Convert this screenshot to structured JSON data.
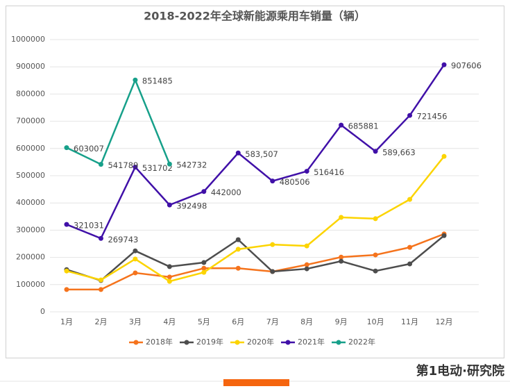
{
  "chart_data": {
    "type": "line",
    "title": "2018-2022年全球新能源乘用车销量（辆）",
    "categories": [
      "1月",
      "2月",
      "3月",
      "4月",
      "5月",
      "6月",
      "7月",
      "8月",
      "9月",
      "10月",
      "11月",
      "12月"
    ],
    "ylim": [
      0,
      1000000
    ],
    "yticks": [
      0,
      100000,
      200000,
      300000,
      400000,
      500000,
      600000,
      700000,
      800000,
      900000,
      1000000
    ],
    "legend": "bottom",
    "series": [
      {
        "name": "2018年",
        "color": "#f5731c",
        "values": [
          82000,
          82000,
          143000,
          128000,
          160000,
          160000,
          148000,
          173000,
          201000,
          209000,
          237000,
          286000
        ]
      },
      {
        "name": "2019年",
        "color": "#4d4d4d",
        "values": [
          155000,
          115000,
          224000,
          166000,
          181000,
          265000,
          148000,
          158000,
          186000,
          150000,
          176000,
          280000
        ]
      },
      {
        "name": "2020年",
        "color": "#fcd400",
        "values": [
          150000,
          117000,
          194000,
          112000,
          145000,
          230000,
          247000,
          242000,
          347000,
          342000,
          413000,
          571000
        ]
      },
      {
        "name": "2021年",
        "color": "#4010a8",
        "values": [
          321031,
          269743,
          531702,
          392498,
          442000,
          583507,
          480506,
          516416,
          685881,
          589663,
          721456,
          907606
        ],
        "value_labels": [
          "321031",
          "269743",
          "531702",
          "392498",
          "442000",
          "583,507",
          "480506",
          "516416",
          "685881",
          "589,663",
          "721456",
          "907606"
        ]
      },
      {
        "name": "2022年",
        "color": "#17a08a",
        "values": [
          603007,
          541789,
          851485,
          542732,
          null,
          null,
          null,
          null,
          null,
          null,
          null,
          null
        ],
        "value_labels": [
          "603007",
          "541789",
          "851485",
          "542732",
          null,
          null,
          null,
          null,
          null,
          null,
          null,
          null
        ]
      }
    ]
  },
  "footer": "第1电动·研究院"
}
